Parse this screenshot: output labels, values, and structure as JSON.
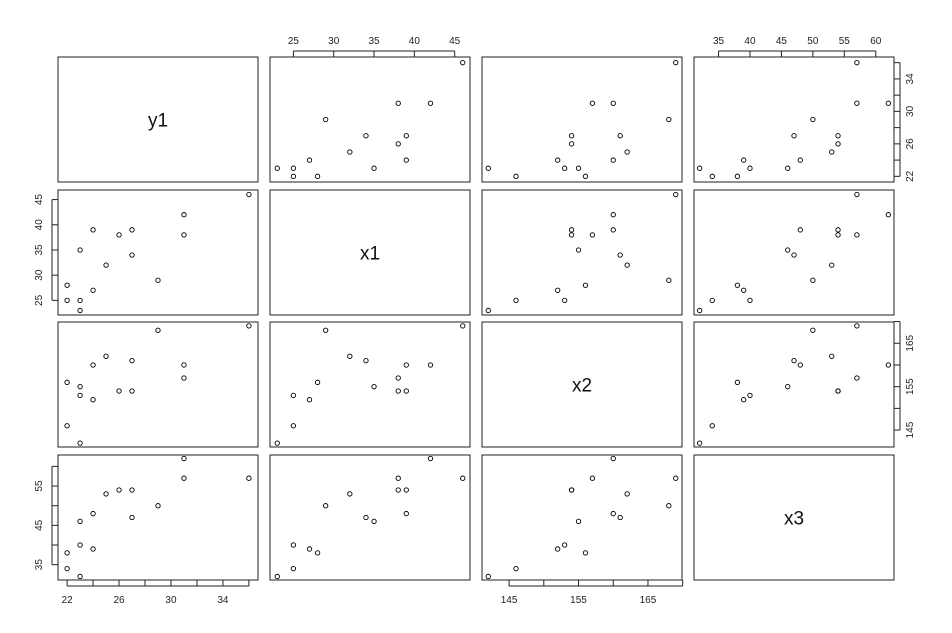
{
  "chart_data": {
    "type": "scatter-matrix",
    "variables": [
      "y1",
      "x1",
      "x2",
      "x3"
    ],
    "observations": [
      {
        "y1": 22,
        "x1": 25,
        "x2": 146,
        "x3": 34
      },
      {
        "y1": 22,
        "x1": 28,
        "x2": 156,
        "x3": 38
      },
      {
        "y1": 23,
        "x1": 23,
        "x2": 142,
        "x3": 32
      },
      {
        "y1": 23,
        "x1": 25,
        "x2": 153,
        "x3": 40
      },
      {
        "y1": 23,
        "x1": 35,
        "x2": 155,
        "x3": 46
      },
      {
        "y1": 24,
        "x1": 27,
        "x2": 152,
        "x3": 39
      },
      {
        "y1": 24,
        "x1": 39,
        "x2": 160,
        "x3": 48
      },
      {
        "y1": 25,
        "x1": 32,
        "x2": 162,
        "x3": 53
      },
      {
        "y1": 26,
        "x1": 38,
        "x2": 154,
        "x3": 54
      },
      {
        "y1": 27,
        "x1": 34,
        "x2": 161,
        "x3": 47
      },
      {
        "y1": 27,
        "x1": 39,
        "x2": 154,
        "x3": 54
      },
      {
        "y1": 29,
        "x1": 29,
        "x2": 168,
        "x3": 50
      },
      {
        "y1": 31,
        "x1": 38,
        "x2": 157,
        "x3": 57
      },
      {
        "y1": 31,
        "x1": 42,
        "x2": 160,
        "x3": 62
      },
      {
        "y1": 36,
        "x1": 46,
        "x2": 169,
        "x3": 57
      }
    ],
    "axes": {
      "y1": {
        "lim": [
          21.3,
          36.7
        ],
        "ticks": [
          22,
          24,
          26,
          28,
          30,
          32,
          34,
          36
        ],
        "major_ticks": [
          22,
          26,
          30,
          34
        ]
      },
      "x1": {
        "lim": [
          22.1,
          46.9
        ],
        "ticks": [
          25,
          30,
          35,
          40,
          45
        ],
        "major_ticks": [
          25,
          30,
          35,
          40,
          45
        ]
      },
      "x2": {
        "lim": [
          141.1,
          169.9
        ],
        "ticks": [
          145,
          150,
          155,
          160,
          165,
          170
        ],
        "major_ticks": [
          145,
          155,
          165
        ]
      },
      "x3": {
        "lim": [
          31.1,
          62.9
        ],
        "ticks": [
          35,
          40,
          45,
          50,
          55,
          60
        ],
        "major_ticks": [
          35,
          45,
          55
        ]
      }
    },
    "axis_placement": {
      "top": [
        "x1",
        "x3"
      ],
      "bottom": [
        "y1",
        "x2"
      ],
      "left": [
        "x1",
        "x3"
      ],
      "right": [
        "y1",
        "x2"
      ]
    },
    "grid": false,
    "legend": "none"
  }
}
